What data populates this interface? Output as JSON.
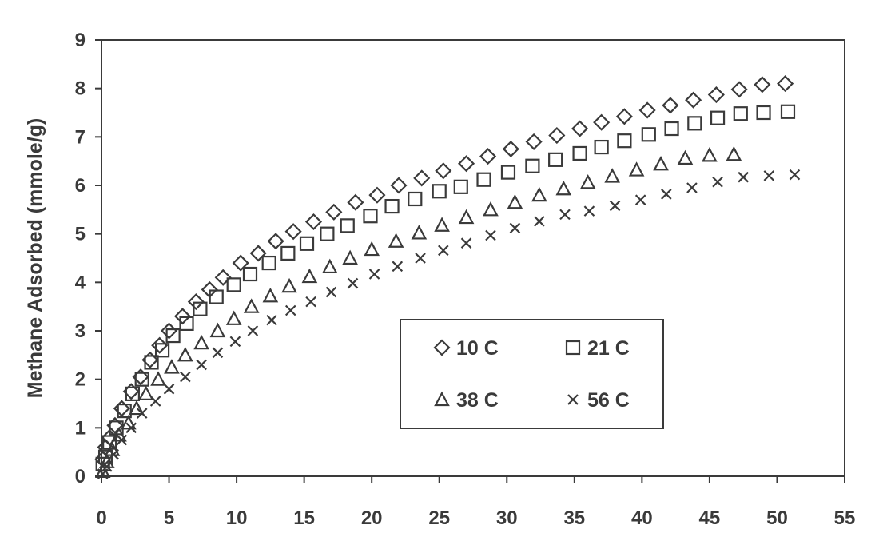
{
  "chart_data": {
    "type": "scatter",
    "title": "",
    "xlabel": "",
    "ylabel": "Methane Adsorbed (mmole/g)",
    "xlim": [
      0,
      55
    ],
    "ylim": [
      0,
      9
    ],
    "xticks": [
      0,
      5,
      10,
      15,
      20,
      25,
      30,
      35,
      40,
      45,
      50,
      55
    ],
    "yticks": [
      0,
      1,
      2,
      3,
      4,
      5,
      6,
      7,
      8,
      9
    ],
    "grid": false,
    "legend": "center-right, inside plot, boxed, 2 columns",
    "series": [
      {
        "name": "10 C",
        "marker": "diamond",
        "x": [
          0.1,
          0.3,
          0.6,
          1.0,
          1.5,
          2.2,
          2.9,
          3.6,
          4.3,
          5.0,
          6.0,
          7.0,
          8.0,
          9.0,
          10.3,
          11.6,
          12.9,
          14.2,
          15.7,
          17.2,
          18.8,
          20.4,
          22.0,
          23.7,
          25.3,
          27.0,
          28.6,
          30.3,
          32.0,
          33.7,
          35.4,
          37.0,
          38.7,
          40.4,
          42.1,
          43.8,
          45.5,
          47.2,
          48.9,
          50.6
        ],
        "y": [
          0.35,
          0.6,
          0.8,
          1.05,
          1.4,
          1.75,
          2.05,
          2.4,
          2.7,
          3.0,
          3.3,
          3.6,
          3.85,
          4.1,
          4.4,
          4.6,
          4.85,
          5.05,
          5.25,
          5.45,
          5.65,
          5.8,
          6.0,
          6.15,
          6.3,
          6.45,
          6.6,
          6.75,
          6.9,
          7.03,
          7.17,
          7.3,
          7.42,
          7.55,
          7.65,
          7.76,
          7.87,
          7.98,
          8.08,
          8.1
        ]
      },
      {
        "name": "21 C",
        "marker": "square",
        "x": [
          0.1,
          0.3,
          0.6,
          1.1,
          1.7,
          2.3,
          3.0,
          3.7,
          4.5,
          5.3,
          6.3,
          7.3,
          8.5,
          9.8,
          11.0,
          12.4,
          13.8,
          15.2,
          16.7,
          18.2,
          19.9,
          21.5,
          23.2,
          25.0,
          26.6,
          28.3,
          30.1,
          31.9,
          33.6,
          35.4,
          37.0,
          38.7,
          40.5,
          42.2,
          43.9,
          45.6,
          47.3,
          49.0,
          50.8
        ],
        "y": [
          0.25,
          0.4,
          0.7,
          1.0,
          1.35,
          1.7,
          2.0,
          2.35,
          2.6,
          2.9,
          3.15,
          3.45,
          3.7,
          3.95,
          4.17,
          4.4,
          4.6,
          4.8,
          5.0,
          5.17,
          5.37,
          5.57,
          5.72,
          5.88,
          5.97,
          6.12,
          6.27,
          6.4,
          6.53,
          6.66,
          6.79,
          6.92,
          7.05,
          7.17,
          7.28,
          7.39,
          7.48,
          7.5,
          7.52
        ]
      },
      {
        "name": "38 C",
        "marker": "triangle",
        "x": [
          0.1,
          0.4,
          0.8,
          1.3,
          2.0,
          2.6,
          3.3,
          4.2,
          5.2,
          6.2,
          7.4,
          8.6,
          9.8,
          11.1,
          12.5,
          13.9,
          15.4,
          16.9,
          18.4,
          20.0,
          21.8,
          23.5,
          25.2,
          27.0,
          28.8,
          30.6,
          32.4,
          34.2,
          36.0,
          37.8,
          39.6,
          41.4,
          43.2,
          45.0,
          46.8
        ],
        "y": [
          0.1,
          0.3,
          0.55,
          0.85,
          1.1,
          1.4,
          1.7,
          2.0,
          2.25,
          2.5,
          2.75,
          3.0,
          3.25,
          3.5,
          3.72,
          3.92,
          4.12,
          4.32,
          4.5,
          4.68,
          4.85,
          5.02,
          5.18,
          5.34,
          5.5,
          5.65,
          5.8,
          5.93,
          6.06,
          6.19,
          6.32,
          6.44,
          6.56,
          6.62,
          6.64
        ]
      },
      {
        "name": "56 C",
        "marker": "cross",
        "x": [
          0.1,
          0.4,
          0.9,
          1.5,
          2.2,
          3.0,
          4.0,
          5.0,
          6.2,
          7.4,
          8.6,
          9.9,
          11.2,
          12.6,
          14.0,
          15.5,
          17.0,
          18.6,
          20.2,
          21.9,
          23.6,
          25.3,
          27.0,
          28.8,
          30.6,
          32.4,
          34.3,
          36.1,
          38.0,
          39.9,
          41.8,
          43.7,
          45.6,
          47.5,
          49.4,
          51.3
        ],
        "y": [
          0.05,
          0.2,
          0.45,
          0.75,
          1.0,
          1.3,
          1.55,
          1.8,
          2.05,
          2.3,
          2.55,
          2.78,
          3.0,
          3.22,
          3.42,
          3.6,
          3.8,
          3.98,
          4.17,
          4.33,
          4.5,
          4.66,
          4.81,
          4.97,
          5.12,
          5.26,
          5.4,
          5.47,
          5.58,
          5.7,
          5.82,
          5.95,
          6.07,
          6.17,
          6.2,
          6.22
        ]
      }
    ]
  }
}
